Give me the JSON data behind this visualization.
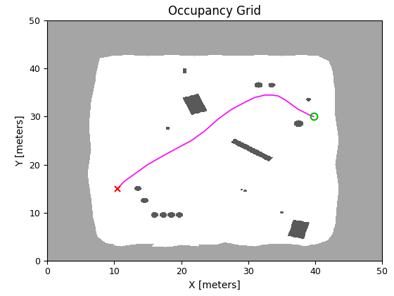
{
  "title": "Occupancy Grid",
  "xlabel": "X [meters]",
  "ylabel": "Y [meters]",
  "xlim": [
    0,
    50
  ],
  "ylim": [
    0,
    50
  ],
  "grid_size": 500,
  "bg_gray": 0.647,
  "free_val": 1.0,
  "obstacle_val": 0.35,
  "path_color": "#ff00ff",
  "start_marker_color": "#ff0000",
  "end_marker_color": "#00bb00",
  "path_x": [
    10.5,
    11.5,
    13.0,
    15.0,
    17.5,
    19.5,
    21.5,
    23.5,
    25.5,
    27.5,
    29.5,
    31.0,
    32.5,
    33.5,
    34.5,
    35.5,
    36.5,
    37.5,
    38.5,
    39.2,
    39.8
  ],
  "path_y": [
    15.0,
    16.5,
    18.0,
    20.0,
    22.0,
    23.5,
    25.0,
    27.0,
    29.5,
    31.5,
    33.0,
    34.0,
    34.5,
    34.5,
    34.3,
    33.5,
    32.5,
    31.5,
    30.8,
    30.3,
    30.0
  ],
  "start_x": 10.5,
  "start_y": 15.0,
  "end_x": 39.8,
  "end_y": 30.0,
  "title_fontsize": 12,
  "label_fontsize": 10,
  "tick_fontsize": 9
}
